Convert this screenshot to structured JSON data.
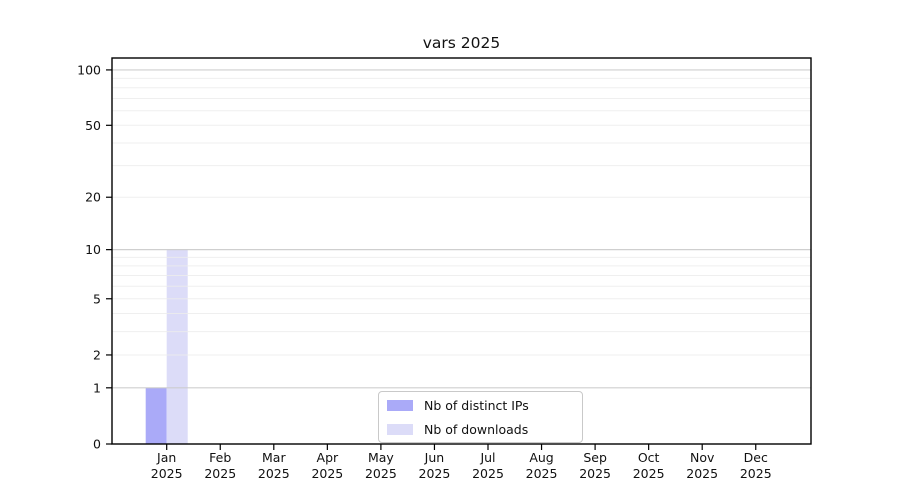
{
  "chart_data": {
    "type": "bar",
    "title": "vars 2025",
    "categories": [
      "Jan",
      "Feb",
      "Mar",
      "Apr",
      "May",
      "Jun",
      "Jul",
      "Aug",
      "Sep",
      "Oct",
      "Nov",
      "Dec"
    ],
    "category_year": "2025",
    "series": [
      {
        "name": "Nb of distinct IPs",
        "color": "#aaaaf8",
        "values": [
          1,
          0,
          0,
          0,
          0,
          0,
          0,
          0,
          0,
          0,
          0,
          0
        ]
      },
      {
        "name": "Nb of downloads",
        "color": "#dcdcf8",
        "values": [
          10,
          0,
          0,
          0,
          0,
          0,
          0,
          0,
          0,
          0,
          0,
          0
        ]
      }
    ],
    "xlabel": "",
    "ylabel": "",
    "yscale": "log1p",
    "ylim": [
      0,
      116
    ],
    "yticks": [
      0,
      1,
      2,
      5,
      10,
      20,
      50,
      100
    ],
    "major_gridlines": [
      1,
      10,
      100
    ],
    "minor_gridlines": [
      2,
      3,
      4,
      5,
      6,
      7,
      8,
      9,
      20,
      30,
      40,
      50,
      60,
      70,
      80,
      90
    ],
    "grid": true,
    "legend_position": "lower center"
  },
  "colors": {
    "bar_distinct_ips": "#aaaaf8",
    "bar_downloads": "#dcdcf8",
    "major_grid": "#cacaca",
    "minor_grid": "#ececec",
    "axis": "#000000",
    "text": "#111111"
  }
}
